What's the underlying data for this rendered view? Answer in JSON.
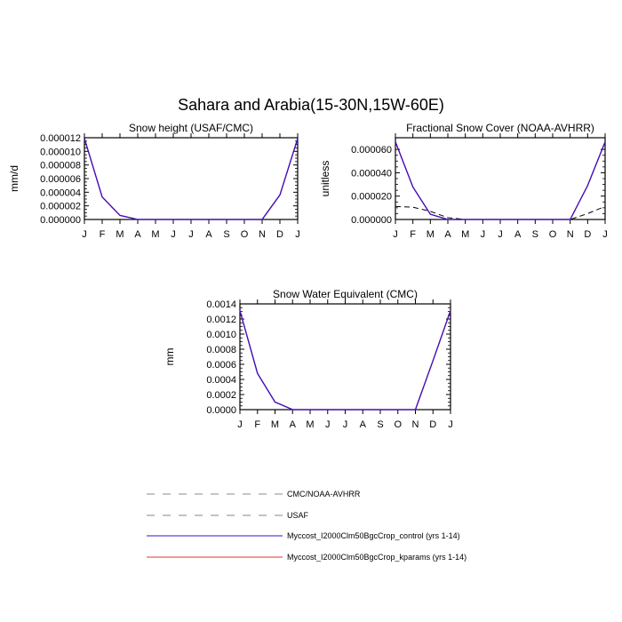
{
  "figure": {
    "title": "Sahara and Arabia(15-30N,15W-60E)"
  },
  "colors": {
    "control": "#3a10c8",
    "kparams": "#e3342f",
    "obs_dash": "#000000",
    "legend_obs_dash": "#888888",
    "axis": "#000000"
  },
  "chart_data": [
    {
      "id": "snow-height",
      "type": "line",
      "title": "Snow height (USAF/CMC)",
      "xlabel": "",
      "ylabel": "mm/d",
      "categories": [
        "J",
        "F",
        "M",
        "A",
        "M",
        "J",
        "J",
        "A",
        "S",
        "O",
        "N",
        "D",
        "J"
      ],
      "ylim": [
        0,
        1.2e-05
      ],
      "yticks": [
        "0.000000",
        "0.000002",
        "0.000004",
        "0.000006",
        "0.000008",
        "0.000010",
        "0.000012"
      ],
      "series": [
        {
          "name": "CMC/NOAA-AVHRR",
          "style": "dashed",
          "values": [
            0,
            0,
            0,
            0,
            0,
            0,
            0,
            0,
            0,
            0,
            0,
            0,
            0
          ]
        },
        {
          "name": "USAF",
          "style": "dashed",
          "values": [
            0,
            0,
            0,
            0,
            0,
            0,
            0,
            0,
            0,
            0,
            0,
            0,
            0
          ]
        },
        {
          "name": "Myccost_I2000Clm50BgcCrop_kparams (yrs 1-14)",
          "style": "solid",
          "values": [
            1.19e-05,
            3.3e-06,
            6e-07,
            0,
            0,
            0,
            0,
            0,
            0,
            0,
            0,
            3.6e-06,
            1.19e-05
          ]
        },
        {
          "name": "Myccost_I2000Clm50BgcCrop_control (yrs 1-14)",
          "style": "solid",
          "values": [
            1.19e-05,
            3.3e-06,
            6e-07,
            0,
            0,
            0,
            0,
            0,
            0,
            0,
            0,
            3.6e-06,
            1.19e-05
          ]
        }
      ]
    },
    {
      "id": "fractional-snow-cover",
      "type": "line",
      "title": "Fractional Snow Cover (NOAA-AVHRR)",
      "xlabel": "",
      "ylabel": "unitless",
      "categories": [
        "J",
        "F",
        "M",
        "A",
        "M",
        "J",
        "J",
        "A",
        "S",
        "O",
        "N",
        "D",
        "J"
      ],
      "ylim": [
        0,
        7e-05
      ],
      "yticks": [
        "0.000000",
        "0.000020",
        "0.000040",
        "0.000060"
      ],
      "series": [
        {
          "name": "CMC/NOAA-AVHRR",
          "style": "dashed",
          "values": [
            1.12e-05,
            1.05e-05,
            7e-06,
            1.5e-06,
            0,
            0,
            0,
            0,
            0,
            0,
            0,
            5e-06,
            1.12e-05
          ]
        },
        {
          "name": "USAF",
          "style": "dashed",
          "values": [
            0,
            0,
            0,
            0,
            0,
            0,
            0,
            0,
            0,
            0,
            0,
            0,
            0
          ]
        },
        {
          "name": "Myccost_I2000Clm50BgcCrop_kparams (yrs 1-14)",
          "style": "solid",
          "values": [
            6.65e-05,
            2.78e-05,
            4.5e-06,
            0,
            0,
            0,
            0,
            0,
            0,
            0,
            0,
            2.9e-05,
            6.65e-05
          ]
        },
        {
          "name": "Myccost_I2000Clm50BgcCrop_control (yrs 1-14)",
          "style": "solid",
          "values": [
            6.65e-05,
            2.78e-05,
            4.5e-06,
            0,
            0,
            0,
            0,
            0,
            0,
            0,
            0,
            2.9e-05,
            6.65e-05
          ]
        }
      ]
    },
    {
      "id": "snow-water-equivalent",
      "type": "line",
      "title": "Snow Water Equivalent (CMC)",
      "xlabel": "",
      "ylabel": "mm",
      "categories": [
        "J",
        "F",
        "M",
        "A",
        "M",
        "J",
        "J",
        "A",
        "S",
        "O",
        "N",
        "D",
        "J"
      ],
      "ylim": [
        0,
        0.0014
      ],
      "yticks": [
        "0.0000",
        "0.0002",
        "0.0004",
        "0.0006",
        "0.0008",
        "0.0010",
        "0.0012",
        "0.0014"
      ],
      "series": [
        {
          "name": "CMC/NOAA-AVHRR",
          "style": "dashed",
          "values": [
            0,
            0,
            0,
            0,
            0,
            0,
            0,
            0,
            0,
            0,
            0,
            0,
            0
          ]
        },
        {
          "name": "USAF",
          "style": "dashed",
          "values": [
            0,
            0,
            0,
            0,
            0,
            0,
            0,
            0,
            0,
            0,
            0,
            0,
            0
          ]
        },
        {
          "name": "Myccost_I2000Clm50BgcCrop_kparams (yrs 1-14)",
          "style": "solid",
          "values": [
            0.00131,
            0.00048,
            0.0001,
            0,
            0,
            0,
            0,
            0,
            0,
            0,
            0,
            0.00065,
            0.00131
          ]
        },
        {
          "name": "Myccost_I2000Clm50BgcCrop_control (yrs 1-14)",
          "style": "solid",
          "values": [
            0.00131,
            0.00048,
            0.0001,
            0,
            0,
            0,
            0,
            0,
            0,
            0,
            0,
            0.00065,
            0.00131
          ]
        }
      ]
    }
  ],
  "legend": {
    "items": [
      {
        "label": "CMC/NOAA-AVHRR",
        "style": "dashed",
        "color": "#888888"
      },
      {
        "label": "USAF",
        "style": "dashed",
        "color": "#888888"
      },
      {
        "label": "Myccost_I2000Clm50BgcCrop_control (yrs 1-14)",
        "style": "solid",
        "color": "#3a10c8"
      },
      {
        "label": "Myccost_I2000Clm50BgcCrop_kparams (yrs 1-14)",
        "style": "solid",
        "color": "#e3342f"
      }
    ]
  }
}
